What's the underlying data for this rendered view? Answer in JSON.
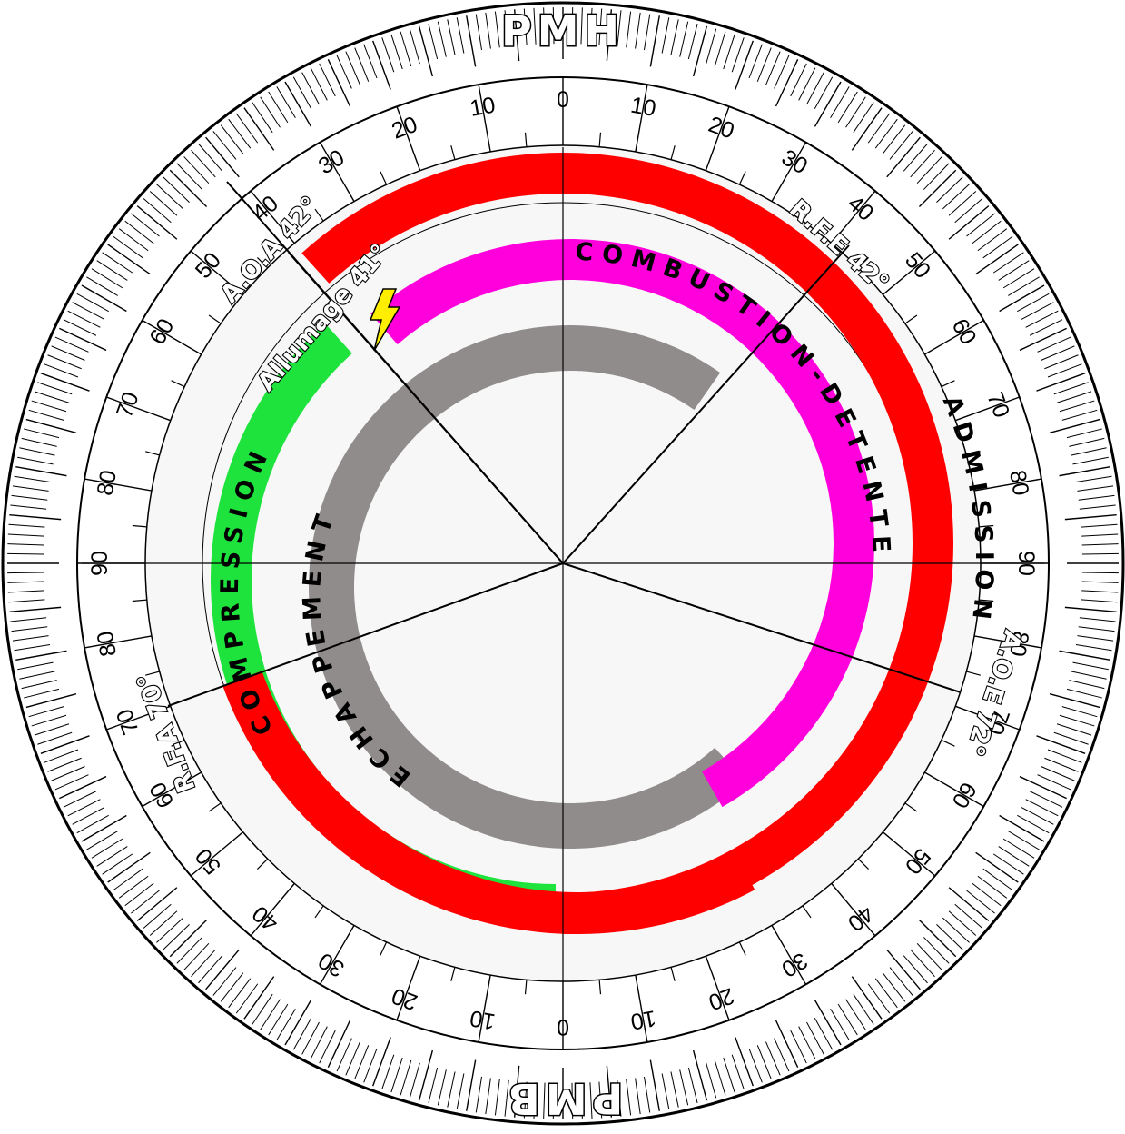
{
  "top_label": "PMH",
  "bottom_label": "PMB",
  "scale_ticks": [
    "0",
    "10",
    "20",
    "30",
    "40",
    "50",
    "60",
    "70",
    "80",
    "90"
  ],
  "bands": {
    "admission": {
      "label": "ADMISSION",
      "color": "#ff0000"
    },
    "compression": {
      "label": "COMPRESSION",
      "color": "#1ee33c"
    },
    "combustion": {
      "label": "COMBUSTION-DETENTE",
      "color": "#ff00dd"
    },
    "echappement": {
      "label": "ECHAPPEMENT",
      "color": "#918c8c"
    }
  },
  "events": {
    "aoa": {
      "label": "A.O.A 42°",
      "angle_deg": 42
    },
    "rfe": {
      "label": "R.F.E 42°",
      "angle_deg": 42
    },
    "aoe": {
      "label": "A.O.E 72°",
      "angle_deg": 72
    },
    "rfa": {
      "label": "R.F.A 70°",
      "angle_deg": 70
    },
    "allumage": {
      "label": "Allumage 41°",
      "angle_deg": 41
    }
  },
  "colors": {
    "ring": "#f7f7f7",
    "lightning": "#ffee00"
  }
}
